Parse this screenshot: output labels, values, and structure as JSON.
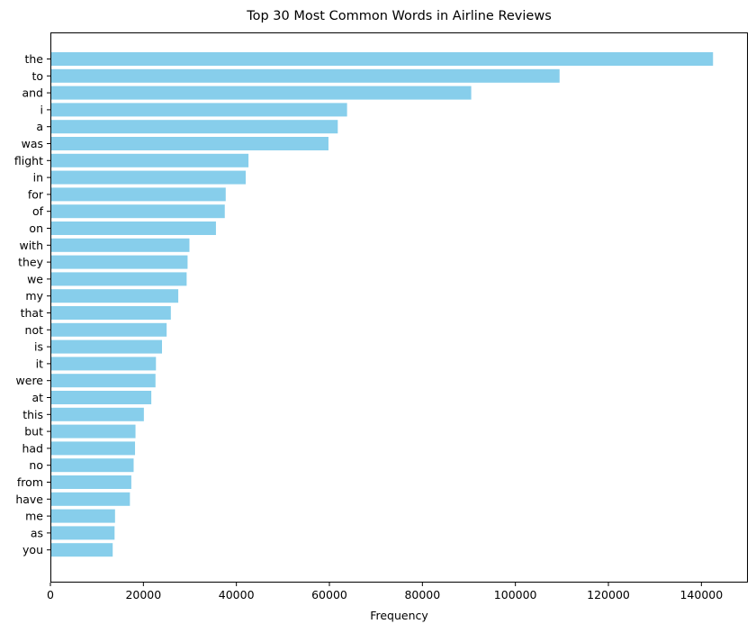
{
  "chart_data": {
    "type": "bar",
    "orientation": "horizontal",
    "title": "Top 30 Most Common Words in Airline Reviews",
    "xlabel": "Frequency",
    "ylabel": "",
    "bar_color": "#87CEEB",
    "xlim": [
      0,
      150000
    ],
    "xticks": [
      0,
      20000,
      40000,
      60000,
      80000,
      100000,
      120000,
      140000
    ],
    "xtick_labels": [
      "0",
      "20000",
      "40000",
      "60000",
      "80000",
      "100000",
      "120000",
      "140000"
    ],
    "grid": false,
    "categories": [
      "the",
      "to",
      "and",
      "i",
      "a",
      "was",
      "flight",
      "in",
      "for",
      "of",
      "on",
      "with",
      "they",
      "we",
      "my",
      "that",
      "not",
      "is",
      "it",
      "were",
      "at",
      "this",
      "but",
      "had",
      "no",
      "from",
      "have",
      "me",
      "as",
      "you"
    ],
    "values": [
      142500,
      109500,
      90500,
      63800,
      61800,
      59800,
      42600,
      42000,
      37700,
      37500,
      35600,
      29900,
      29500,
      29300,
      27500,
      25900,
      25000,
      24000,
      22700,
      22600,
      21700,
      20100,
      18300,
      18200,
      17900,
      17400,
      17100,
      13900,
      13800,
      13400
    ]
  }
}
